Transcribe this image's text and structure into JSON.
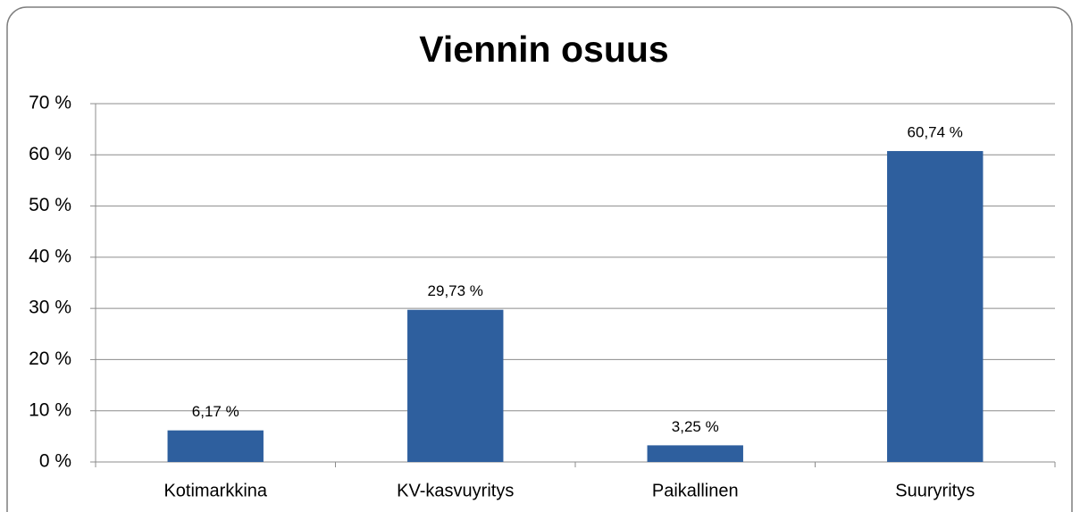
{
  "chart_data": {
    "type": "bar",
    "title": "Viennin osuus",
    "categories": [
      "Kotimarkkina",
      "KV-kasvuyritys",
      "Paikallinen",
      "Suuryritys"
    ],
    "values": [
      6.17,
      29.73,
      3.25,
      60.74
    ],
    "value_labels": [
      "6,17 %",
      "29,73 %",
      "3,25 %",
      "60,74 %"
    ],
    "color": "#2e5f9e",
    "ylim": [
      0,
      70
    ],
    "yticks": [
      {
        "value": 0,
        "label": "0 %"
      },
      {
        "value": 10,
        "label": "10 %"
      },
      {
        "value": 20,
        "label": "20 %"
      },
      {
        "value": 30,
        "label": "30 %"
      },
      {
        "value": 40,
        "label": "40 %"
      },
      {
        "value": 50,
        "label": "50 %"
      },
      {
        "value": 60,
        "label": "60 %"
      },
      {
        "value": 70,
        "label": "70 %"
      }
    ],
    "grid": true
  }
}
